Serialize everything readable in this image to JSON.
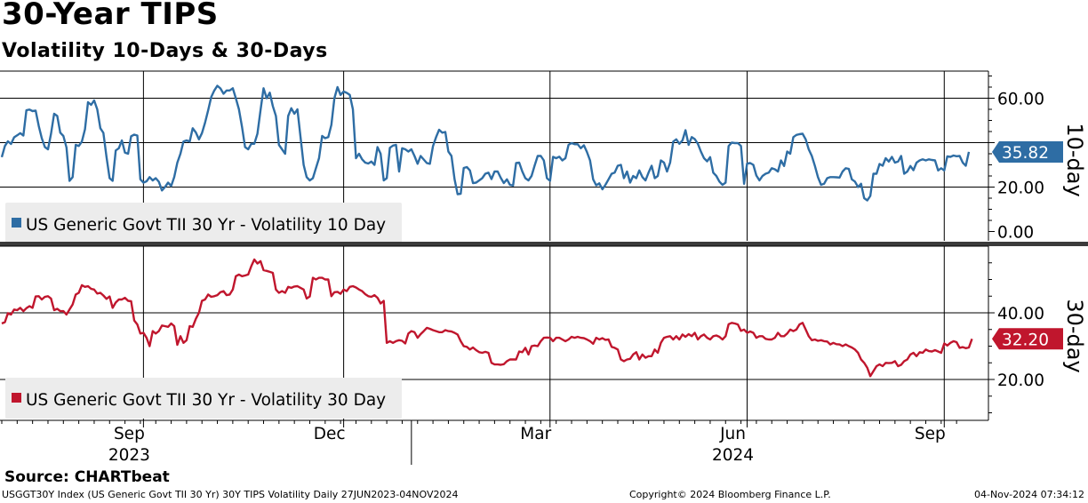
{
  "title": "30-Year TIPS",
  "subtitle": "Volatility 10-Days & 30-Days",
  "footer": {
    "source": "Source: CHARTbeat",
    "description": "USGGT30Y Index (US Generic Govt TII 30 Yr) 30Y TIPS Volatility  Daily 27JUN2023-04NOV2024",
    "copyright": "Copyright© 2024 Bloomberg Finance L.P.",
    "timestamp": "04-Nov-2024 07:34:12"
  },
  "colors": {
    "blue": "#2e6da4",
    "red": "#c0162d",
    "grid": "#000000",
    "legend_bg": "#ececec"
  },
  "x_axis": {
    "month_ticks": [
      {
        "label": "Sep",
        "idx": 46
      },
      {
        "label": "Dec",
        "idx": 111
      },
      {
        "label": "Mar",
        "idx": 178
      },
      {
        "label": "Jun",
        "idx": 242
      },
      {
        "label": "Sep",
        "idx": 306
      }
    ],
    "year_labels": [
      {
        "label": "2023",
        "idx": 46
      },
      {
        "label": "2024",
        "idx": 242
      }
    ],
    "year_divider_idx": 133
  },
  "chart_data": [
    {
      "type": "line",
      "title": "Volatility 10 Day",
      "axis_label": "10-day",
      "legend": "US Generic Govt TII 30 Yr - Volatility 10 Day",
      "yticks": [
        "60.00",
        "20.00",
        "0.00"
      ],
      "gridlines": [
        60,
        40,
        20
      ],
      "ylim": [
        -5,
        72
      ],
      "last_value": 35.82,
      "last_value_label": "35.82",
      "values": [
        33.5,
        38.5,
        40.6,
        39.4,
        42.4,
        43.3,
        44.3,
        43.2,
        54.6,
        54.9,
        54.2,
        54.4,
        47.5,
        42.0,
        38.0,
        37.0,
        44.0,
        53.0,
        52.0,
        44.5,
        43.0,
        37.8,
        22.8,
        24.5,
        39.0,
        38.5,
        40.5,
        46.0,
        58.2,
        57.0,
        59.0,
        55.0,
        46.5,
        44.4,
        33.6,
        24.0,
        22.8,
        36.5,
        37.5,
        41.0,
        35.5,
        35.0,
        42.9,
        43.6,
        43.2,
        23.5,
        22.0,
        22.6,
        24.5,
        23.0,
        24.0,
        22.4,
        18.5,
        20.0,
        22.0,
        20.5,
        24.5,
        31.0,
        35.0,
        40.5,
        41.0,
        40.5,
        46.5,
        44.6,
        41.5,
        44.3,
        49.0,
        54.6,
        60.5,
        63.5,
        65.6,
        64.4,
        62.0,
        63.5,
        63.5,
        64.5,
        60.0,
        55.0,
        47.0,
        38.0,
        37.0,
        39.5,
        39.5,
        44.0,
        54.6,
        64.5,
        60.0,
        62.5,
        56.5,
        52.0,
        39.0,
        37.0,
        35.0,
        52.0,
        55.5,
        53.0,
        55.0,
        42.5,
        30.0,
        24.5,
        23.0,
        24.0,
        28.5,
        33.0,
        43.0,
        42.0,
        42.5,
        48.0,
        60.0,
        65.0,
        61.5,
        63.0,
        62.4,
        61.5,
        55.0,
        33.0,
        35.0,
        32.5,
        31.0,
        30.6,
        31.5,
        30.0,
        38.0,
        35.0,
        23.0,
        24.0,
        37.7,
        38.7,
        39.0,
        27.0,
        37.5,
        37.0,
        36.0,
        37.0,
        34.0,
        30.5,
        34.0,
        32.4,
        30.8,
        30.5,
        38.4,
        42.5,
        45.8,
        44.5,
        44.8,
        36.0,
        34.0,
        23.5,
        16.8,
        17.0,
        28.6,
        29.0,
        27.5,
        21.8,
        22.0,
        23.0,
        24.0,
        26.0,
        26.5,
        23.6,
        27.0,
        27.0,
        24.2,
        21.8,
        23.5,
        21.0,
        20.7,
        30.8,
        31.0,
        27.0,
        24.0,
        23.0,
        25.0,
        29.6,
        34.0,
        34.0,
        32.0,
        24.0,
        22.8,
        33.6,
        33.0,
        33.7,
        32.0,
        33.0,
        39.0,
        39.8,
        39.3,
        39.3,
        37.5,
        38.8,
        35.8,
        32.0,
        23.5,
        20.8,
        21.7,
        19.0,
        21.0,
        23.5,
        26.0,
        26.5,
        29.6,
        30.0,
        24.0,
        27.0,
        22.0,
        25.0,
        24.0,
        27.5,
        24.5,
        23.0,
        26.5,
        29.6,
        24.0,
        25.0,
        32.0,
        31.0,
        27.0,
        31.0,
        40.5,
        41.5,
        39.5,
        41.0,
        45.6,
        39.0,
        42.5,
        41.6,
        39.5,
        36.0,
        33.0,
        31.6,
        33.5,
        26.5,
        25.0,
        22.5,
        21.0,
        22.0,
        38.5,
        40.0,
        39.8,
        39.8,
        38.5,
        21.5,
        30.6,
        30.8,
        30.0,
        25.2,
        23.0,
        25.0,
        26.0,
        26.5,
        28.5,
        28.0,
        27.0,
        32.0,
        29.5,
        36.0,
        35.0,
        42.5,
        43.5,
        43.8,
        44.0,
        41.5,
        37.0,
        34.0,
        29.5,
        24.5,
        21.0,
        21.5,
        24.0,
        24.5,
        24.5,
        24.4,
        24.3,
        27.0,
        28.5,
        28.2,
        23.5,
        22.5,
        20.0,
        21.5,
        15.0,
        14.0,
        16.0,
        26.0,
        26.0,
        30.4,
        29.6,
        33.0,
        31.5,
        33.6,
        31.0,
        31.5,
        34.0,
        26.0,
        27.0,
        29.5,
        27.6,
        31.0,
        32.0,
        32.5,
        32.0,
        32.5,
        32.2,
        32.0,
        27.5,
        28.5,
        27.5,
        33.8,
        33.6,
        34.2,
        33.9,
        34.0,
        31.0,
        29.6,
        35.82
      ]
    },
    {
      "type": "line",
      "title": "Volatility 30 Day",
      "axis_label": "30-day",
      "legend": "US Generic Govt TII 30 Yr - Volatility 30 Day",
      "yticks": [
        "40.00",
        "20.00"
      ],
      "gridlines": [
        40,
        20
      ],
      "ylim": [
        7.5,
        60
      ],
      "last_value": 32.2,
      "last_value_label": "32.20",
      "values": [
        36.8,
        37.2,
        39.9,
        39.5,
        41.0,
        40.8,
        41.5,
        40.5,
        41.4,
        42.0,
        41.5,
        44.9,
        45.0,
        44.0,
        44.8,
        45.0,
        44.3,
        40.8,
        41.2,
        40.5,
        40.5,
        39.5,
        41.0,
        42.5,
        45.5,
        46.0,
        48.3,
        47.8,
        48.0,
        47.2,
        47.0,
        45.8,
        46.0,
        45.2,
        44.2,
        44.9,
        41.5,
        43.1,
        44.0,
        44.0,
        44.5,
        43.6,
        43.5,
        37.7,
        36.5,
        33.8,
        34.0,
        32.5,
        30.0,
        34.5,
        33.8,
        34.5,
        36.2,
        36.0,
        35.8,
        36.8,
        36.0,
        30.4,
        33.0,
        31.0,
        31.8,
        36.0,
        35.8,
        38.2,
        40.0,
        43.6,
        44.0,
        45.5,
        44.8,
        45.0,
        45.3,
        46.2,
        46.5,
        45.3,
        45.5,
        47.0,
        51.0,
        51.5,
        51.0,
        51.2,
        51.5,
        54.0,
        56.0,
        54.8,
        55.5,
        52.8,
        52.6,
        52.3,
        52.0,
        47.0,
        46.0,
        46.5,
        46.0,
        47.8,
        47.5,
        47.9,
        48.0,
        47.5,
        47.0,
        44.3,
        44.9,
        50.5,
        50.0,
        50.5,
        50.5,
        50.0,
        50.0,
        45.0,
        46.2,
        46.3,
        45.7,
        47.0,
        46.5,
        47.8,
        48.0,
        47.6,
        47.0,
        46.5,
        45.6,
        45.0,
        44.8,
        45.3,
        44.5,
        42.8,
        43.6,
        31.0,
        31.5,
        31.0,
        31.5,
        31.8,
        31.6,
        30.8,
        33.8,
        34.5,
        34.2,
        32.5,
        33.6,
        34.5,
        35.5,
        35.2,
        34.8,
        34.5,
        34.2,
        34.2,
        34.8,
        34.5,
        34.4,
        34.0,
        33.5,
        31.5,
        30.0,
        29.8,
        29.0,
        29.6,
        28.8,
        28.2,
        28.0,
        28.3,
        28.0,
        25.0,
        24.5,
        24.5,
        24.4,
        24.6,
        25.5,
        26.0,
        26.0,
        26.0,
        28.4,
        28.2,
        29.5,
        27.5,
        30.0,
        30.2,
        30.0,
        31.5,
        32.5,
        32.6,
        32.5,
        31.5,
        32.5,
        32.5,
        32.0,
        31.5,
        32.0,
        32.8,
        32.5,
        32.8,
        32.5,
        32.4,
        32.0,
        31.5,
        30.7,
        32.5,
        32.0,
        32.4,
        31.9,
        32.0,
        29.8,
        29.5,
        29.0,
        26.0,
        25.5,
        26.0,
        26.2,
        27.5,
        28.2,
        26.0,
        27.5,
        26.5,
        27.0,
        27.0,
        29.0,
        28.0,
        31.0,
        32.5,
        32.8,
        33.0,
        32.0,
        33.0,
        32.0,
        33.5,
        32.8,
        33.6,
        33.0,
        34.0,
        32.0,
        33.0,
        33.5,
        32.5,
        32.0,
        33.0,
        33.2,
        32.8,
        32.0,
        33.0,
        36.6,
        37.0,
        36.8,
        36.5,
        34.6,
        35.0,
        34.0,
        34.4,
        34.0,
        32.5,
        33.0,
        33.0,
        32.2,
        32.0,
        32.0,
        32.5,
        34.0,
        33.0,
        33.0,
        33.8,
        35.0,
        34.5,
        35.0,
        36.5,
        37.0,
        35.0,
        33.0,
        31.8,
        32.0,
        31.6,
        31.8,
        31.5,
        31.4,
        30.5,
        31.0,
        30.6,
        30.5,
        30.0,
        30.5,
        30.0,
        29.6,
        29.0,
        28.0,
        26.0,
        25.0,
        23.5,
        21.0,
        22.5,
        24.0,
        24.5,
        24.0,
        25.0,
        24.9,
        25.0,
        25.5,
        24.0,
        24.4,
        25.5,
        26.0,
        27.5,
        28.0,
        27.0,
        28.2,
        28.0,
        29.0,
        28.5,
        28.4,
        28.8,
        28.4,
        28.0,
        30.8,
        30.2,
        31.0,
        31.5,
        31.2,
        29.5,
        29.7,
        29.4,
        29.6,
        32.2
      ]
    }
  ]
}
